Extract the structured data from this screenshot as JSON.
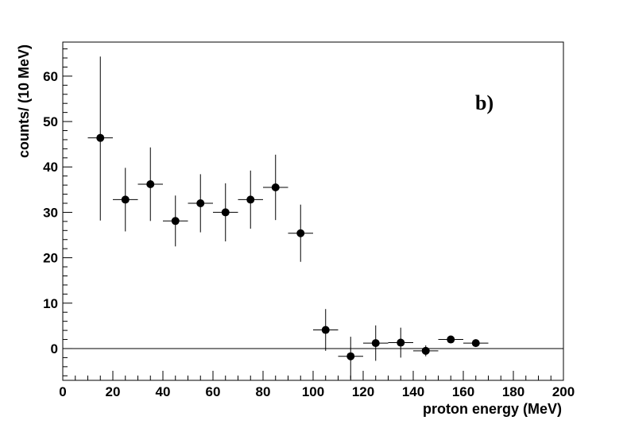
{
  "chart_data": {
    "type": "scatter",
    "xlabel": "proton energy (MeV)",
    "ylabel": "counts/ (10 MeV)",
    "annotation": "b)",
    "xlim": [
      0,
      200
    ],
    "ylim": [
      -7,
      67.5
    ],
    "x_ticks": [
      0,
      20,
      40,
      60,
      80,
      100,
      120,
      140,
      160,
      180,
      200
    ],
    "y_ticks": [
      0,
      10,
      20,
      30,
      40,
      50,
      60
    ],
    "bin_width": 10,
    "zero_line": true,
    "points": [
      {
        "x": 15,
        "y": 46.4,
        "err_low": 18.2,
        "err_high": 17.9
      },
      {
        "x": 25,
        "y": 32.8,
        "err_low": 7.0,
        "err_high": 7.0
      },
      {
        "x": 35,
        "y": 36.2,
        "err_low": 8.1,
        "err_high": 8.1
      },
      {
        "x": 45,
        "y": 28.1,
        "err_low": 5.6,
        "err_high": 5.6
      },
      {
        "x": 55,
        "y": 32.0,
        "err_low": 6.4,
        "err_high": 6.4
      },
      {
        "x": 65,
        "y": 30.0,
        "err_low": 6.4,
        "err_high": 6.4
      },
      {
        "x": 75,
        "y": 32.8,
        "err_low": 6.4,
        "err_high": 6.4
      },
      {
        "x": 85,
        "y": 35.5,
        "err_low": 7.2,
        "err_high": 7.2
      },
      {
        "x": 95,
        "y": 25.4,
        "err_low": 6.3,
        "err_high": 6.3
      },
      {
        "x": 105,
        "y": 4.1,
        "err_low": 4.6,
        "err_high": 4.6
      },
      {
        "x": 115,
        "y": -1.7,
        "err_low": 5.0,
        "err_high": 4.3
      },
      {
        "x": 125,
        "y": 1.2,
        "err_low": 3.9,
        "err_high": 3.9
      },
      {
        "x": 135,
        "y": 1.3,
        "err_low": 3.3,
        "err_high": 3.3
      },
      {
        "x": 145,
        "y": -0.5,
        "err_low": 1.2,
        "err_high": 1.2
      },
      {
        "x": 155,
        "y": 2.0,
        "err_low": 0.8,
        "err_high": 0.8
      },
      {
        "x": 165,
        "y": 1.2,
        "err_low": 0.5,
        "err_high": 0.5
      }
    ]
  }
}
